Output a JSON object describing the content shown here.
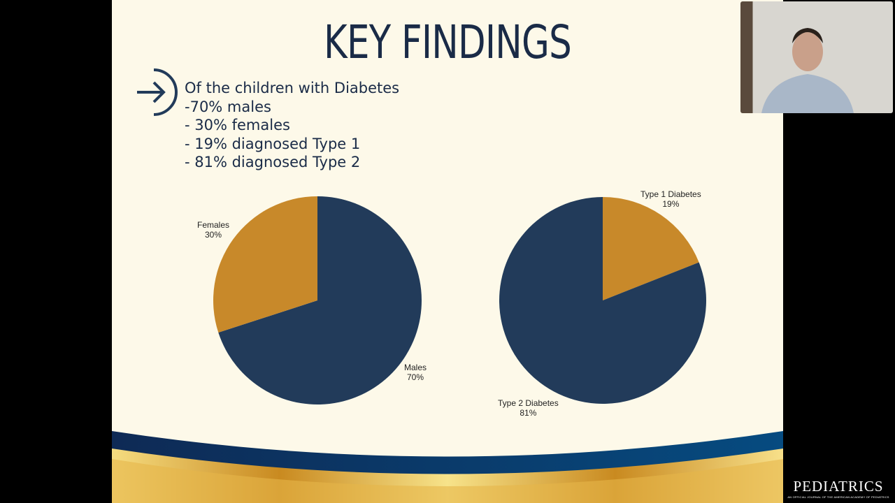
{
  "slide": {
    "title": "KEY FINDINGS",
    "bullets": [
      "Of the children with Diabetes",
      "-70% males",
      "- 30% females",
      "- 19% diagnosed Type 1",
      "- 81% diagnosed Type 2"
    ]
  },
  "colors": {
    "navy": "#223b5a",
    "gold": "#c8892a"
  },
  "chart_data": [
    {
      "type": "pie",
      "title": "",
      "slices": [
        {
          "label": "Males",
          "value": 70,
          "pct": "70%",
          "color": "#223b5a"
        },
        {
          "label": "Females",
          "value": 30,
          "pct": "30%",
          "color": "#c8892a"
        }
      ]
    },
    {
      "type": "pie",
      "title": "",
      "slices": [
        {
          "label": "Type 1 Diabetes",
          "value": 19,
          "pct": "19%",
          "color": "#c8892a"
        },
        {
          "label": "Type 2 Diabetes",
          "value": 81,
          "pct": "81%",
          "color": "#223b5a"
        }
      ]
    }
  ],
  "logo": {
    "name": "PEDIATRICS",
    "tagline": "AN OFFICIAL JOURNAL OF THE AMERICAN ACADEMY OF PEDIATRICS"
  }
}
